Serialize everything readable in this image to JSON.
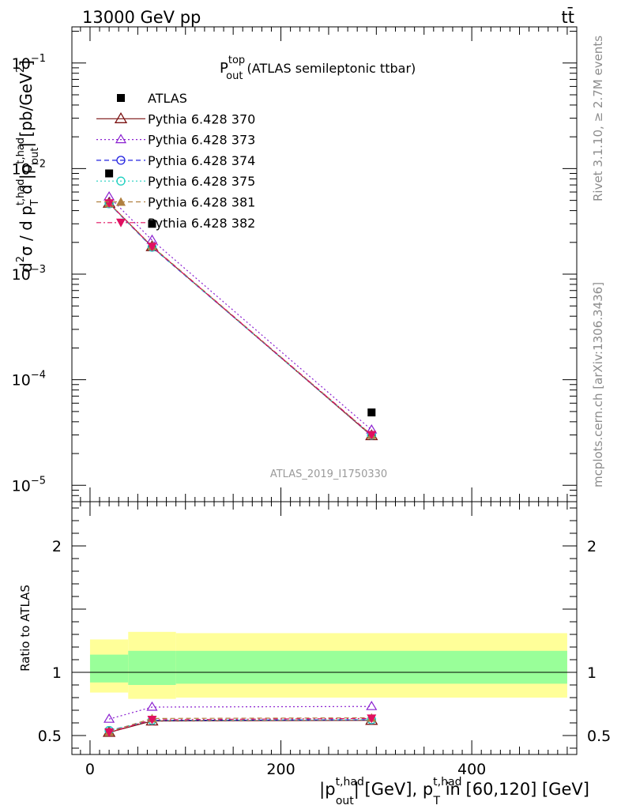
{
  "header": {
    "left": "13000 GeV pp",
    "right": "tt̄"
  },
  "side_labels": {
    "rivet": "Rivet 3.1.10, ≥ 2.7M events",
    "mcplots": "mcplots.cern.ch [arXiv:1306.3436]"
  },
  "chart_data": [
    {
      "type": "line",
      "panel": "main",
      "title": {
        "main": "P",
        "sup": "top",
        "sub": "out",
        "rest": " (ATLAS semileptonic ttbar)"
      },
      "watermark": "ATLAS_2019_I1750330",
      "ylabel": {
        "p1": "d",
        "p1sup": "2",
        "p2": "σ / d p",
        "p2sup": "t,had",
        "p2sub": "T",
        "p3": " d |p",
        "p3sup": "t,had",
        "p3sub": "out",
        "p4": "| [pb/GeV",
        "p4sup": "2",
        "p5": "]"
      },
      "yscale": "log",
      "ylim": [
        7e-06,
        0.22
      ],
      "yticks": [
        {
          "value": 1e-05,
          "base": "10",
          "exp": "−5"
        },
        {
          "value": 0.0001,
          "base": "10",
          "exp": "−4"
        },
        {
          "value": 0.001,
          "base": "10",
          "exp": "−3"
        },
        {
          "value": 0.01,
          "base": "10",
          "exp": "−2"
        },
        {
          "value": 0.1,
          "base": "10",
          "exp": "−1"
        }
      ],
      "xlim": [
        -19,
        510
      ],
      "data": {
        "name": "ATLAS",
        "x": [
          20,
          65,
          295
        ],
        "y": [
          0.009,
          0.003,
          4.9e-05
        ]
      },
      "series": [
        {
          "name": "Pythia 6.428 370",
          "color": "#7a1010",
          "marker": "triangle-open",
          "dash": "",
          "x": [
            20,
            65,
            295
          ],
          "y": [
            0.0047,
            0.00182,
            2.95e-05
          ]
        },
        {
          "name": "Pythia 6.428 373",
          "color": "#8a1fd0",
          "marker": "triangle-open-small",
          "dash": "2,3",
          "x": [
            20,
            65,
            295
          ],
          "y": [
            0.0054,
            0.0021,
            3.35e-05
          ]
        },
        {
          "name": "Pythia 6.428 374",
          "color": "#2020e0",
          "marker": "circle-open",
          "dash": "6,4",
          "x": [
            20,
            65,
            295
          ],
          "y": [
            0.00465,
            0.0018,
            2.98e-05
          ]
        },
        {
          "name": "Pythia 6.428 375",
          "color": "#20d0c0",
          "marker": "circle-open",
          "dash": "2,3",
          "x": [
            20,
            65,
            295
          ],
          "y": [
            0.00465,
            0.0018,
            2.98e-05
          ]
        },
        {
          "name": "Pythia 6.428 381",
          "color": "#b08040",
          "marker": "triangle-filled",
          "dash": "6,4",
          "x": [
            20,
            65,
            295
          ],
          "y": [
            0.0047,
            0.00184,
            3e-05
          ]
        },
        {
          "name": "Pythia 6.428 382",
          "color": "#e01060",
          "marker": "triangle-down-filled",
          "dash": "6,3,2,3",
          "x": [
            20,
            65,
            295
          ],
          "y": [
            0.0047,
            0.00182,
            3e-05
          ]
        }
      ],
      "legend_position": "top-left"
    },
    {
      "type": "line",
      "panel": "ratio",
      "ylabel": "Ratio to ATLAS",
      "ylim": [
        0.35,
        2.35
      ],
      "yticks": [
        0.5,
        1,
        2
      ],
      "ytick_labels": [
        "0.5",
        "1",
        "2"
      ],
      "xlim": [
        -19,
        510
      ],
      "xticks": [
        0,
        200,
        400
      ],
      "xtick_labels": [
        "0",
        "200",
        "400"
      ],
      "xlabel": {
        "p1": "|p",
        "p1sup": "t,had",
        "p1sub": "out",
        "p2": "| [GeV], p",
        "p2sup": "t,had",
        "p2sub": "T",
        "p3": " in [60,120] [GeV]"
      },
      "reference_line": 1,
      "uncertainty_bands": [
        {
          "x0": 0,
          "x1": 40,
          "yellow": [
            0.84,
            1.26
          ],
          "green": [
            0.92,
            1.14
          ]
        },
        {
          "x0": 40,
          "x1": 90,
          "yellow": [
            0.79,
            1.32
          ],
          "green": [
            0.9,
            1.17
          ]
        },
        {
          "x0": 90,
          "x1": 500,
          "yellow": [
            0.8,
            1.31
          ],
          "green": [
            0.91,
            1.17
          ]
        }
      ],
      "series": [
        {
          "name": "Pythia 6.428 370",
          "x": [
            20,
            65,
            295
          ],
          "y": [
            0.525,
            0.615,
            0.62
          ]
        },
        {
          "name": "Pythia 6.428 373",
          "x": [
            20,
            65,
            295
          ],
          "y": [
            0.63,
            0.725,
            0.73
          ]
        },
        {
          "name": "Pythia 6.428 374",
          "x": [
            20,
            65,
            295
          ],
          "y": [
            0.54,
            0.62,
            0.625
          ]
        },
        {
          "name": "Pythia 6.428 375",
          "x": [
            20,
            65,
            295
          ],
          "y": [
            0.54,
            0.62,
            0.625
          ]
        },
        {
          "name": "Pythia 6.428 381",
          "x": [
            20,
            65,
            295
          ],
          "y": [
            0.53,
            0.635,
            0.64
          ]
        },
        {
          "name": "Pythia 6.428 382",
          "x": [
            20,
            65,
            295
          ],
          "y": [
            0.525,
            0.625,
            0.635
          ]
        }
      ]
    }
  ]
}
